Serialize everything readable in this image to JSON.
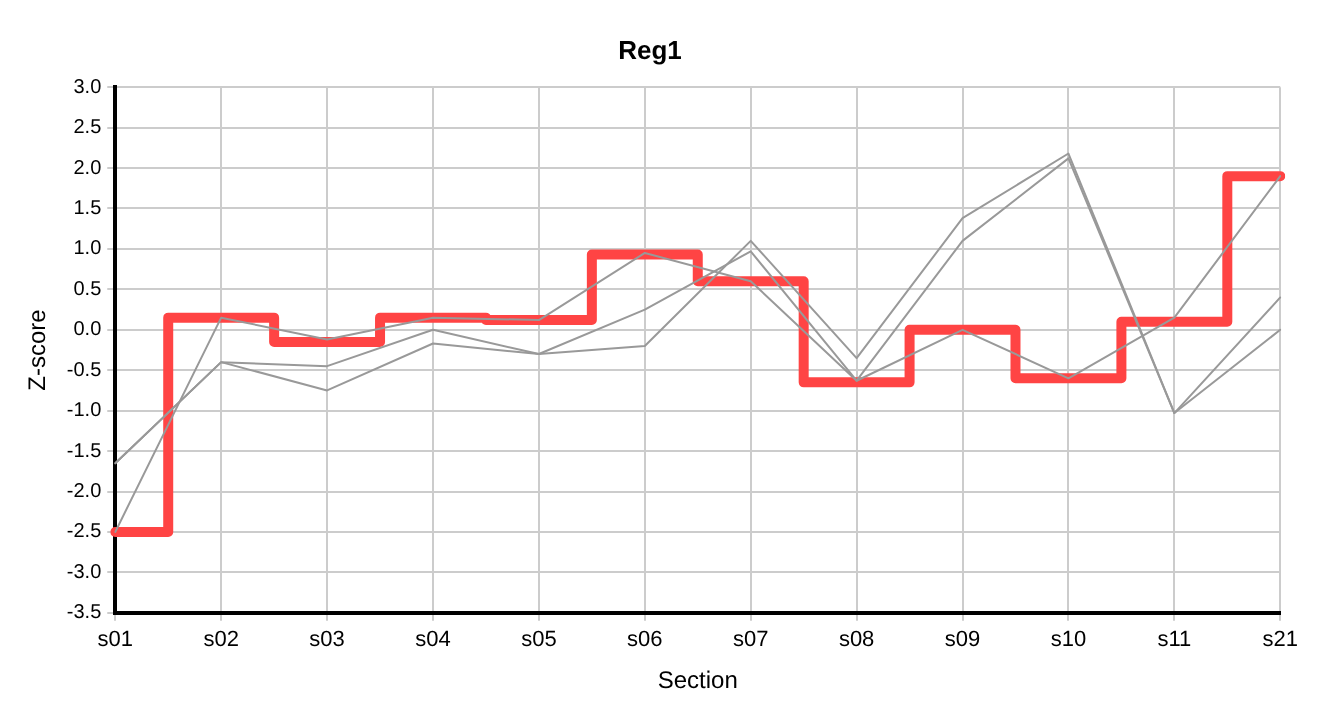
{
  "chart_data": {
    "type": "line",
    "title": "Reg1",
    "xlabel": "Section",
    "ylabel": "Z-score",
    "categories": [
      "s01",
      "s02",
      "s03",
      "s04",
      "s05",
      "s06",
      "s07",
      "s08",
      "s09",
      "s10",
      "s11",
      "s21"
    ],
    "series": [
      {
        "type": "line",
        "color": "#999999",
        "values": [
          -2.5,
          0.15,
          -0.12,
          0.15,
          0.12,
          0.95,
          0.6,
          -0.63,
          0.0,
          -0.6,
          0.15,
          1.9
        ]
      },
      {
        "type": "line",
        "color": "#999999",
        "values": [
          -1.65,
          -0.4,
          -0.45,
          0.0,
          -0.3,
          0.25,
          0.97,
          -0.63,
          1.1,
          2.12,
          -1.03,
          0.0
        ]
      },
      {
        "type": "line",
        "color": "#999999",
        "values": [
          -1.65,
          -0.4,
          -0.75,
          -0.17,
          -0.3,
          -0.2,
          1.1,
          -0.35,
          1.38,
          2.18,
          -1.03,
          0.4
        ]
      },
      {
        "type": "step",
        "color": "#ff4444",
        "values": [
          -2.5,
          0.15,
          -0.15,
          0.15,
          0.12,
          0.93,
          0.6,
          -0.65,
          0.0,
          -0.6,
          0.1,
          1.9
        ]
      }
    ],
    "ylim": [
      -3.5,
      3.0
    ],
    "yticks": [
      -3.5,
      {
        "value": -3,
        "label": "-3.0"
      },
      -2.5,
      {
        "value": -2,
        "label": "-2.0"
      },
      -1.5,
      {
        "value": -1,
        "label": "-1.0"
      },
      -0.5,
      {
        "value": 0,
        "label": "0.0"
      },
      0.5,
      {
        "value": 1,
        "label": "1.0"
      },
      1.5,
      {
        "value": 2,
        "label": "2.0"
      },
      2.5,
      {
        "value": 3,
        "label": "3.0"
      }
    ],
    "grid": true,
    "legend": false,
    "marker": "none"
  }
}
